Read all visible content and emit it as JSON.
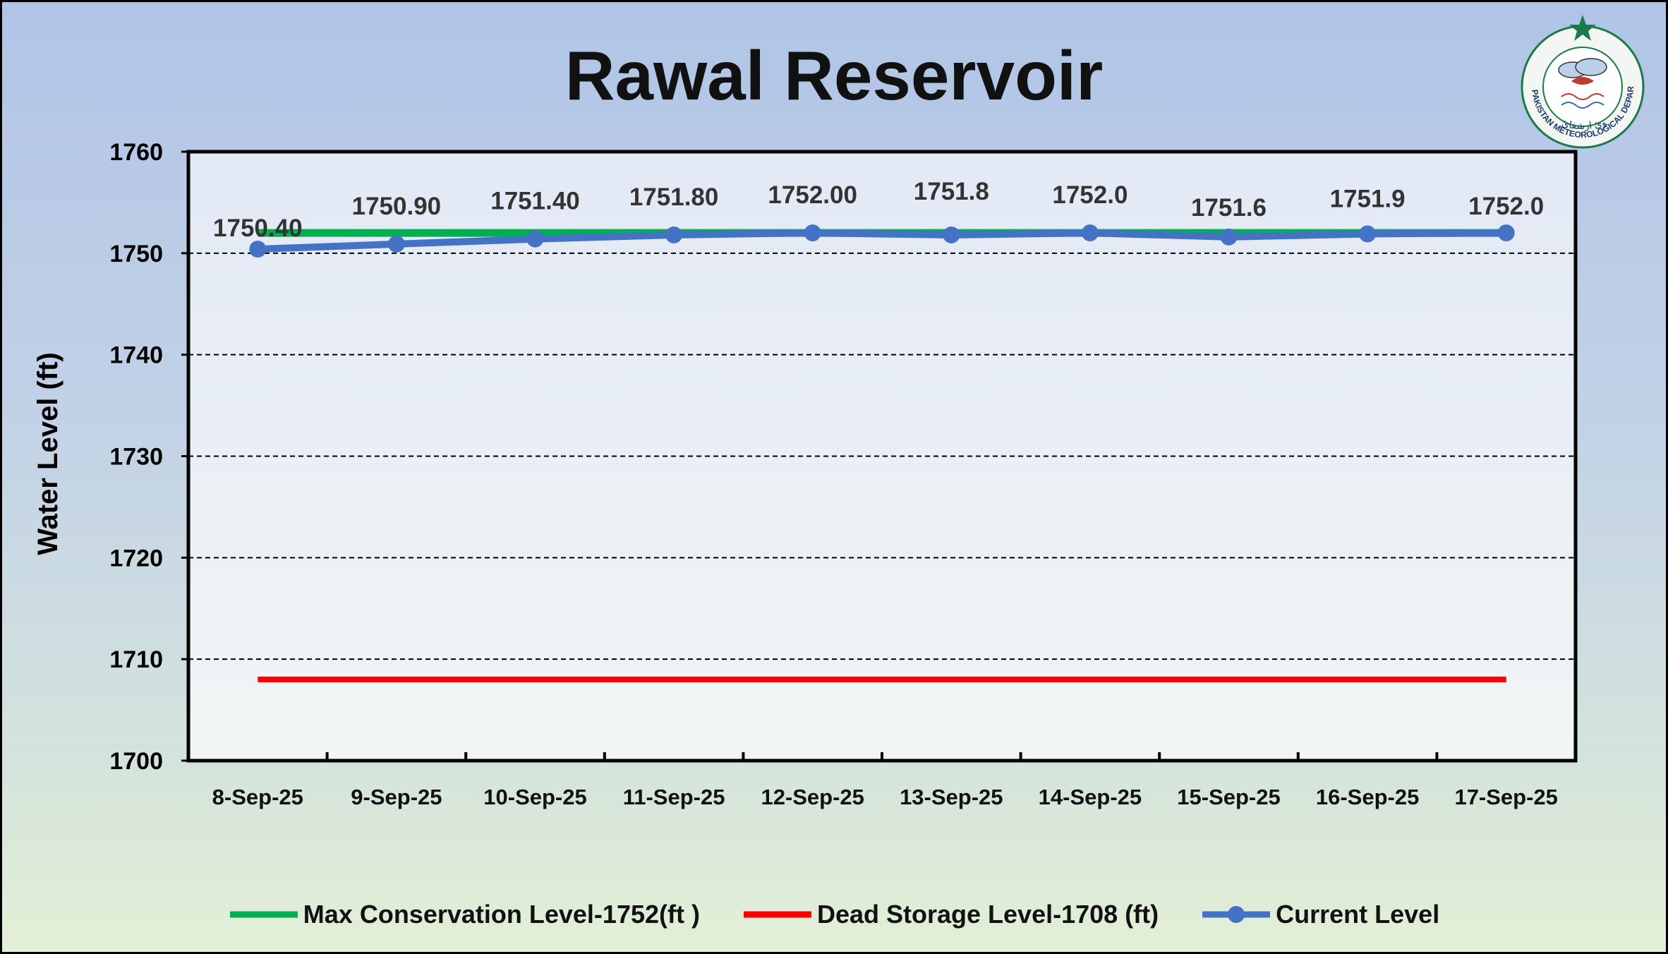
{
  "chart_data": {
    "type": "line",
    "title": "Rawal Reservoir",
    "ylabel": "Water Level (ft)",
    "xlabel": "",
    "categories": [
      "8-Sep-25",
      "9-Sep-25",
      "10-Sep-25",
      "11-Sep-25",
      "12-Sep-25",
      "13-Sep-25",
      "14-Sep-25",
      "15-Sep-25",
      "16-Sep-25",
      "17-Sep-25"
    ],
    "ylim": [
      1700,
      1760
    ],
    "yticks": [
      "1760",
      "1750",
      "1740",
      "1730",
      "1720",
      "1710",
      "1700"
    ],
    "grid": "horizontal dashed",
    "legend_position": "bottom",
    "series": [
      {
        "name": "Max Conservation Level-1752(ft )",
        "color": "#00b050",
        "values": [
          1752,
          1752,
          1752,
          1752,
          1752,
          1752,
          1752,
          1752,
          1752,
          1752
        ]
      },
      {
        "name": "Dead Storage Level-1708 (ft)",
        "color": "#ff0000",
        "values": [
          1708,
          1708,
          1708,
          1708,
          1708,
          1708,
          1708,
          1708,
          1708,
          1708
        ]
      },
      {
        "name": "Current Level",
        "color": "#4472c4",
        "values": [
          1750.4,
          1750.9,
          1751.4,
          1751.8,
          1752.0,
          1751.8,
          1752.0,
          1751.6,
          1751.9,
          1752.0
        ],
        "labels": [
          "1750.40",
          "1750.90",
          "1751.40",
          "1751.80",
          "1752.00",
          "1751.8",
          "1752.0",
          "1751.6",
          "1751.9",
          "1752.0"
        ]
      }
    ]
  },
  "logo": {
    "text": "PAKISTAN METEOROLOGICAL DEPARTMENT",
    "urdu_text": "لابت ارشوئ ارشفائ"
  }
}
